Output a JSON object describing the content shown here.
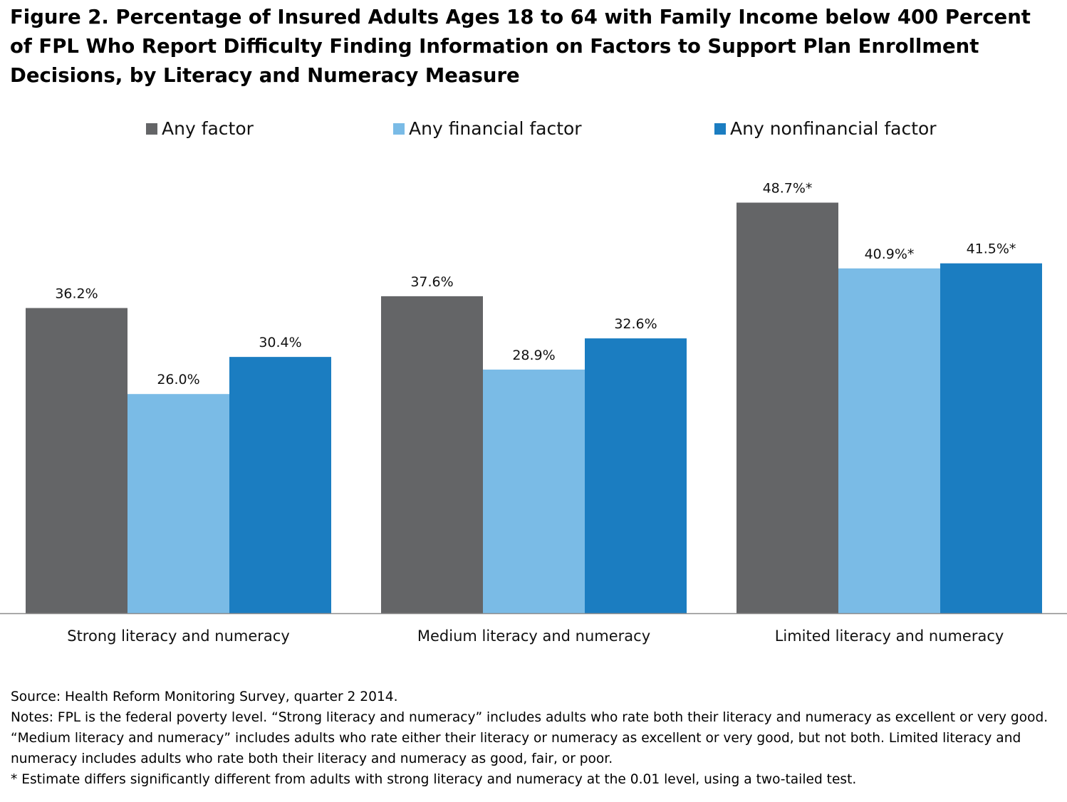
{
  "title": "Figure 2. Percentage of Insured Adults Ages 18 to 64 with Family Income below 400 Percent of FPL Who Report Difficulty Finding Information on Factors to Support Plan Enrollment Decisions, by Literacy and Numeracy Measure",
  "colors": {
    "any_factor": "#646567",
    "any_financial_factor": "#7ABBE6",
    "any_nonfinancial_factor": "#1B7DC1",
    "baseline": "#8c8c8c"
  },
  "chart_data": {
    "type": "bar",
    "title": "Figure 2. Percentage of Insured Adults Ages 18 to 64 with Family Income below 400 Percent of FPL Who Report Difficulty Finding Information on Factors to Support Plan Enrollment Decisions, by Literacy and Numeracy Measure",
    "xlabel": "",
    "ylabel": "",
    "ylim": [
      0,
      50
    ],
    "grid": false,
    "legend_position": "top",
    "categories": [
      "Strong literacy and numeracy",
      "Medium literacy and numeracy",
      "Limited literacy and numeracy"
    ],
    "series": [
      {
        "name": "Any factor",
        "color": "#646567",
        "values": [
          36.2,
          37.6,
          48.7
        ],
        "labels": [
          "36.2%",
          "37.6%",
          "48.7%*"
        ]
      },
      {
        "name": "Any financial factor",
        "color": "#7ABBE6",
        "values": [
          26.0,
          28.9,
          40.9
        ],
        "labels": [
          "26.0%",
          "28.9%",
          "40.9%*"
        ]
      },
      {
        "name": "Any nonfinancial factor",
        "color": "#1B7DC1",
        "values": [
          30.4,
          32.6,
          41.5
        ],
        "labels": [
          "30.4%",
          "32.6%",
          "41.5%*"
        ]
      }
    ]
  },
  "footnotes": {
    "source": "Source: Health Reform Monitoring Survey, quarter 2 2014.",
    "notes": "Notes: FPL is the federal poverty level. “Strong literacy and numeracy” includes adults who rate both their literacy and numeracy as excellent or very good.  “Medium literacy and numeracy” includes adults who rate either their literacy or numeracy as excellent or very good, but not both. Limited literacy and numeracy includes adults who rate both their literacy and numeracy as good, fair, or poor.",
    "significance": "* Estimate differs significantly different from adults with strong literacy and numeracy at the 0.01 level, using a two-tailed test."
  }
}
